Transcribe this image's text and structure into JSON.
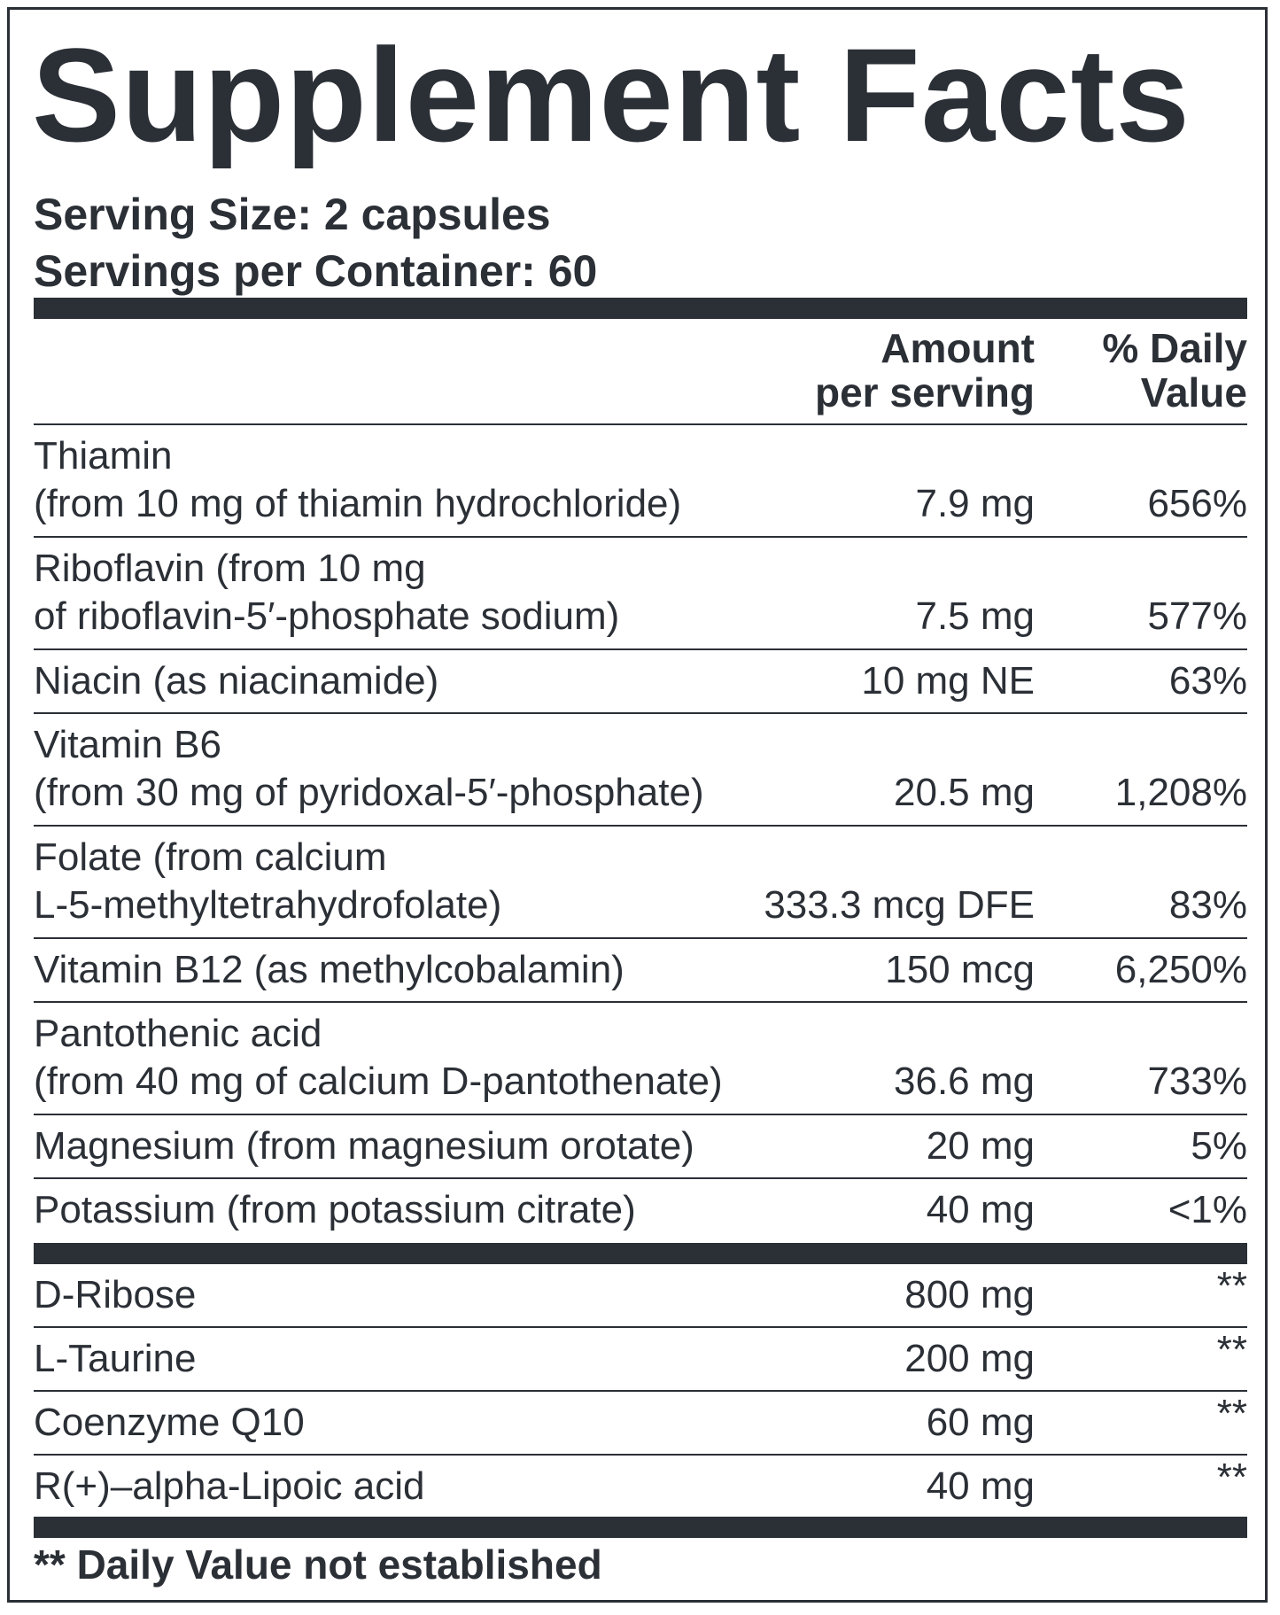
{
  "header": {
    "title": "Supplement Facts",
    "serving_size": "Serving Size: 2 capsules",
    "servings_per_container": "Servings per Container: 60"
  },
  "table": {
    "amount_header": [
      "Amount",
      "per serving"
    ],
    "dv_header": [
      "% Daily",
      "Value"
    ],
    "rows": [
      {
        "name": [
          "Thiamin",
          "(from 10 mg of thiamin hydrochloride)"
        ],
        "amount": "7.9 mg",
        "dv": "656%"
      },
      {
        "name": [
          "Riboflavin (from 10 mg",
          "of riboflavin-5′-phosphate sodium)"
        ],
        "amount": "7.5 mg",
        "dv": "577%"
      },
      {
        "name": [
          "Niacin (as niacinamide)"
        ],
        "amount": "10 mg NE",
        "dv": "63%"
      },
      {
        "name": [
          "Vitamin B6",
          "(from 30 mg of pyridoxal-5′-phosphate)"
        ],
        "amount": "20.5 mg",
        "dv": "1,208%"
      },
      {
        "name": [
          "Folate (from calcium",
          "L-5-methyltetrahydrofolate)"
        ],
        "amount": "333.3 mcg DFE",
        "dv": "83%"
      },
      {
        "name": [
          "Vitamin B12 (as methylcobalamin)"
        ],
        "amount": "150 mcg",
        "dv": "6,250%"
      },
      {
        "name": [
          "Pantothenic acid",
          "(from 40 mg of calcium D-pantothenate)"
        ],
        "amount": "36.6 mg",
        "dv": "733%"
      },
      {
        "name": [
          "Magnesium (from magnesium orotate)"
        ],
        "amount": "20 mg",
        "dv": "5%"
      },
      {
        "name": [
          "Potassium (from potassium citrate)"
        ],
        "amount": "40 mg",
        "dv": "<1%"
      }
    ],
    "other_rows": [
      {
        "name": [
          "D-Ribose"
        ],
        "amount": "800 mg",
        "dv": "**"
      },
      {
        "name": [
          "L-Taurine"
        ],
        "amount": "200 mg",
        "dv": "**"
      },
      {
        "name": [
          "Coenzyme Q10"
        ],
        "amount": "60 mg",
        "dv": "**"
      },
      {
        "name": [
          "R(+)–alpha-Lipoic acid"
        ],
        "amount": "40 mg",
        "dv": "**"
      }
    ]
  },
  "footnote": "** Daily Value not established"
}
